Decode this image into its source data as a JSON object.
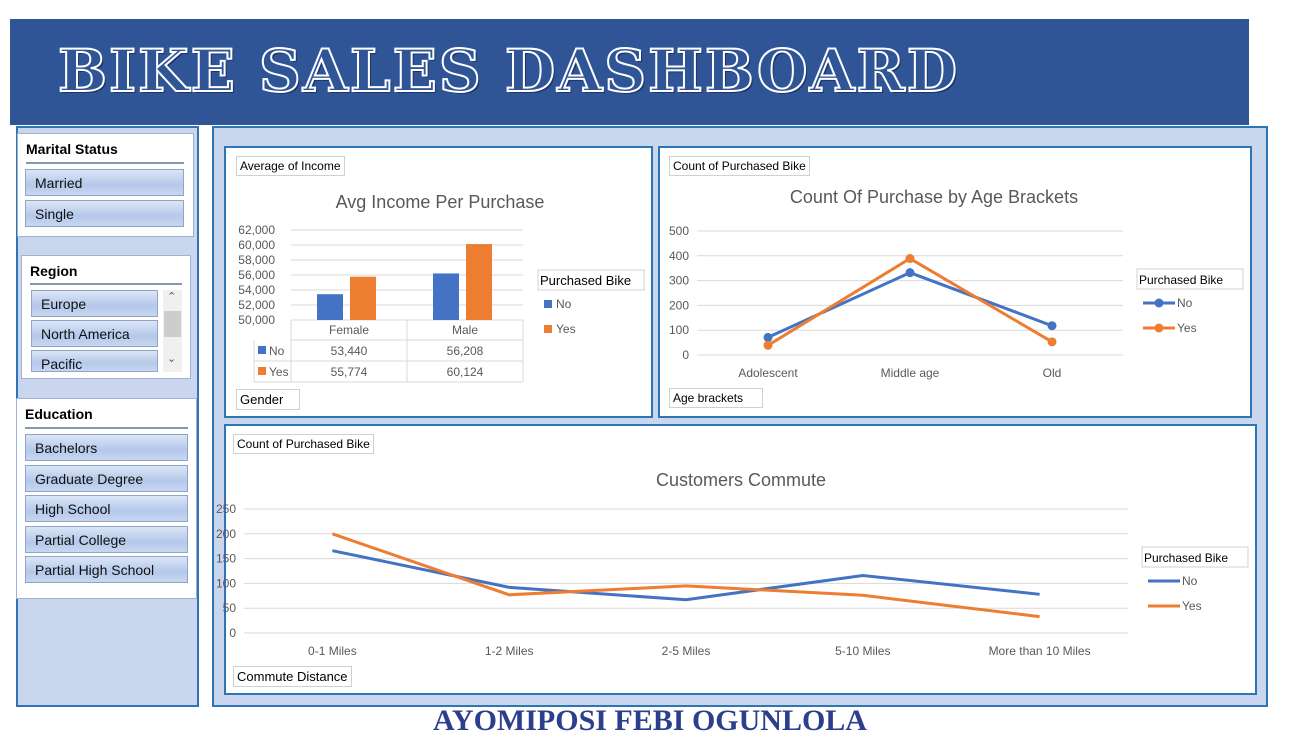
{
  "header": {
    "title": "BIKE SALES DASHBOARD"
  },
  "footer": {
    "author": "AYOMIPOSI FEBI OGUNLOLA"
  },
  "slicers": {
    "marital": {
      "title": "Marital Status",
      "items": [
        "Married",
        "Single"
      ]
    },
    "region": {
      "title": "Region",
      "items": [
        "Europe",
        "North America",
        "Pacific"
      ]
    },
    "education": {
      "title": "Education",
      "items": [
        "Bachelors",
        "Graduate Degree",
        "High School",
        "Partial College",
        "Partial High School"
      ]
    }
  },
  "colors": {
    "no": "#4472c4",
    "yes": "#ed7d31",
    "header": "#2f5597"
  },
  "chart_data": [
    {
      "type": "bar",
      "field_button": "Average of Income",
      "axis_button": "Gender",
      "title": "Avg Income Per Purchase",
      "categories": [
        "Female",
        "Male"
      ],
      "ylim": [
        50000,
        62000
      ],
      "yticks": [
        "50,000",
        "52,000",
        "54,000",
        "56,000",
        "58,000",
        "60,000",
        "62,000"
      ],
      "legend_title": "Purchased Bike",
      "series": [
        {
          "name": "No",
          "values": [
            53440,
            56208
          ],
          "labels": [
            "53,440",
            "56,208"
          ]
        },
        {
          "name": "Yes",
          "values": [
            55774,
            60124
          ],
          "labels": [
            "55,774",
            "60,124"
          ]
        }
      ]
    },
    {
      "type": "line",
      "field_button": "Count of Purchased Bike",
      "axis_button": "Age brackets",
      "title": "Count Of Purchase by Age Brackets",
      "categories": [
        "Adolescent",
        "Middle age",
        "Old"
      ],
      "ylim": [
        0,
        500
      ],
      "yticks": [
        "0",
        "100",
        "200",
        "300",
        "400",
        "500"
      ],
      "legend_title": "Purchased Bike",
      "markers": true,
      "series": [
        {
          "name": "No",
          "values": [
            71,
            332,
            118
          ]
        },
        {
          "name": "Yes",
          "values": [
            39,
            389,
            53
          ]
        }
      ]
    },
    {
      "type": "line",
      "field_button": "Count of Purchased Bike",
      "axis_button": "Commute Distance",
      "title": "Customers Commute",
      "categories": [
        "0-1 Miles",
        "1-2 Miles",
        "2-5 Miles",
        "5-10 Miles",
        "More than 10 Miles"
      ],
      "ylim": [
        0,
        250
      ],
      "yticks": [
        "0",
        "50",
        "100",
        "150",
        "200",
        "250"
      ],
      "legend_title": "Purchased Bike",
      "markers": false,
      "series": [
        {
          "name": "No",
          "values": [
            166,
            92,
            67,
            116,
            78
          ]
        },
        {
          "name": "Yes",
          "values": [
            200,
            77,
            95,
            76,
            33
          ]
        }
      ]
    }
  ]
}
